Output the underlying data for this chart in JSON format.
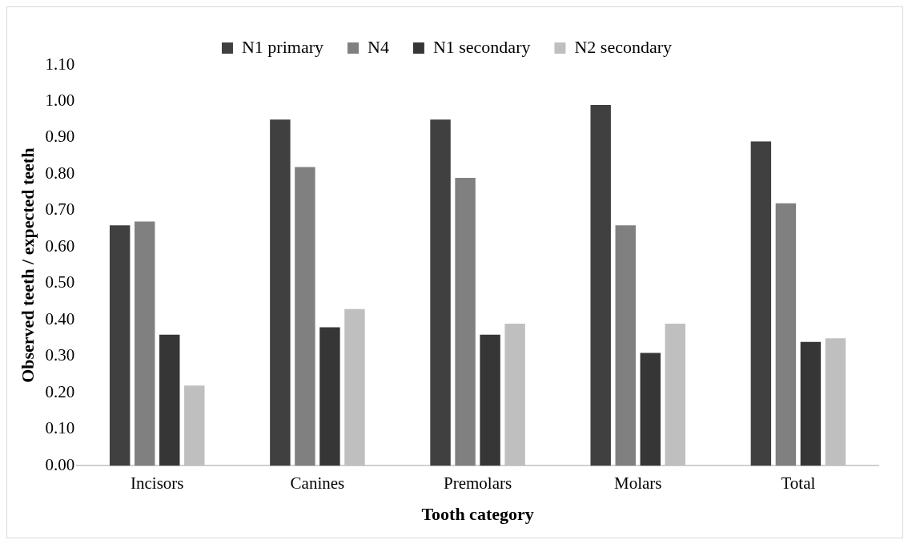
{
  "chart_data": {
    "type": "bar",
    "xlabel": "Tooth category",
    "ylabel": "Observed teeth / expected teeth",
    "categories": [
      "Incisors",
      "Canines",
      "Premolars",
      "Molars",
      "Total"
    ],
    "series": [
      {
        "name": "N1 primary",
        "color": "#404040",
        "values": [
          0.66,
          0.95,
          0.95,
          0.99,
          0.89
        ]
      },
      {
        "name": "N4",
        "color": "#808080",
        "values": [
          0.67,
          0.82,
          0.79,
          0.66,
          0.72
        ]
      },
      {
        "name": "N1 secondary",
        "color": "#363636",
        "values": [
          0.36,
          0.38,
          0.36,
          0.31,
          0.34
        ]
      },
      {
        "name": "N2 secondary",
        "color": "#bfbfbf",
        "values": [
          0.22,
          0.43,
          0.39,
          0.39,
          0.35
        ]
      }
    ],
    "ylim": [
      0,
      1.1
    ],
    "yticks": [
      {
        "value": 0,
        "label": "0.00"
      },
      {
        "value": 0.1,
        "label": "0.10"
      },
      {
        "value": 0.2,
        "label": "0.20"
      },
      {
        "value": 0.3,
        "label": "0.30"
      },
      {
        "value": 0.4,
        "label": "0.40"
      },
      {
        "value": 0.5,
        "label": "0.50"
      },
      {
        "value": 0.6,
        "label": "0.60"
      },
      {
        "value": 0.7,
        "label": "0.70"
      },
      {
        "value": 0.8,
        "label": "0.80"
      },
      {
        "value": 0.9,
        "label": "0.90"
      },
      {
        "value": 1,
        "label": "1.00"
      },
      {
        "value": 1.1,
        "label": "1.10"
      }
    ],
    "grid": false,
    "legend": "top"
  }
}
